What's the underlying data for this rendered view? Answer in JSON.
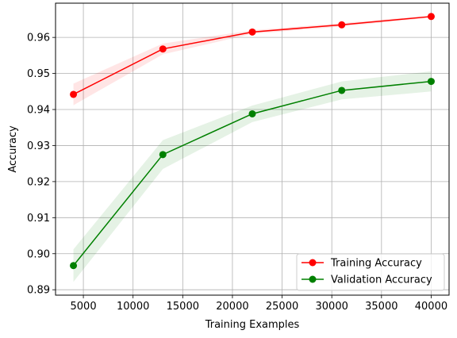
{
  "chart_data": {
    "type": "line",
    "title": "",
    "xlabel": "Training Examples",
    "ylabel": "Accuracy",
    "xlim": [
      2200,
      41800
    ],
    "ylim": [
      0.8885,
      0.9695
    ],
    "xticks": [
      5000,
      10000,
      15000,
      20000,
      25000,
      30000,
      35000,
      40000
    ],
    "xtick_labels": [
      "5000",
      "10000",
      "15000",
      "20000",
      "25000",
      "30000",
      "35000",
      "40000"
    ],
    "yticks": [
      0.89,
      0.9,
      0.91,
      0.92,
      0.93,
      0.94,
      0.95,
      0.96
    ],
    "ytick_labels": [
      "0.89",
      "0.90",
      "0.91",
      "0.92",
      "0.93",
      "0.94",
      "0.95",
      "0.96"
    ],
    "grid": true,
    "legend_position": "bottom-right",
    "x": [
      4000,
      13000,
      22000,
      31000,
      40000
    ],
    "series": [
      {
        "name": "Training Accuracy",
        "color": "#ff0000",
        "band_color": "#ff0000",
        "values": [
          0.9442,
          0.9568,
          0.9615,
          0.9635,
          0.9658
        ],
        "band_lower": [
          0.9412,
          0.9553,
          0.961,
          0.963,
          0.9655
        ],
        "band_upper": [
          0.9472,
          0.9583,
          0.962,
          0.964,
          0.9661
        ]
      },
      {
        "name": "Validation Accuracy",
        "color": "#008000",
        "band_color": "#008000",
        "values": [
          0.8967,
          0.9275,
          0.9388,
          0.9453,
          0.9478
        ],
        "band_lower": [
          0.8922,
          0.9235,
          0.9365,
          0.9428,
          0.945
        ],
        "band_upper": [
          0.9012,
          0.9315,
          0.9411,
          0.9478,
          0.9506
        ]
      }
    ]
  }
}
